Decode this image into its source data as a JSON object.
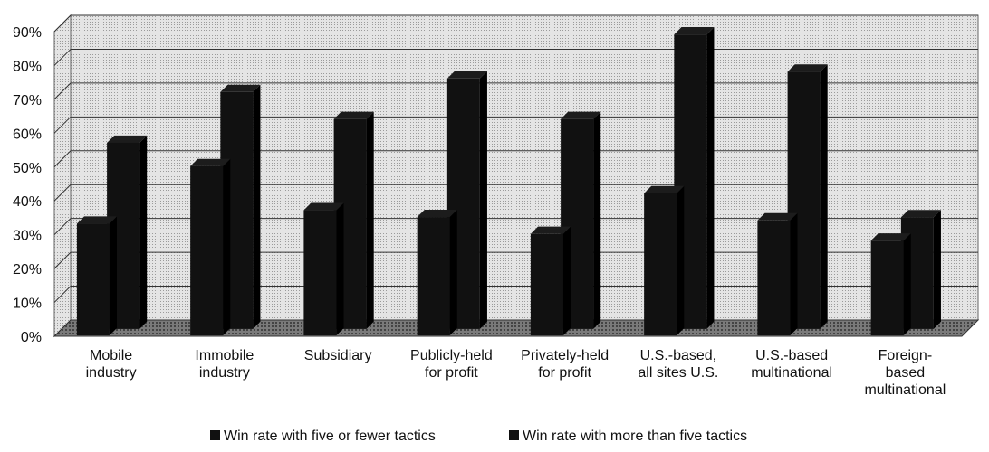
{
  "chart_data": {
    "type": "bar3d",
    "categories": [
      [
        "Mobile",
        "industry"
      ],
      [
        "Immobile",
        "industry"
      ],
      [
        "Subsidiary"
      ],
      [
        "Publicly-held",
        "for profit"
      ],
      [
        "Privately-held",
        "for profit"
      ],
      [
        "U.S.-based,",
        "all sites U.S."
      ],
      [
        "U.S.-based",
        "multinational"
      ],
      [
        "Foreign-",
        "based",
        "multinational"
      ]
    ],
    "series": [
      {
        "name": "Win rate with five or fewer tactics",
        "color": "#111111",
        "values": [
          33,
          50,
          37,
          35,
          30,
          42,
          34,
          28
        ]
      },
      {
        "name": "Win rate with more than five tactics",
        "color": "#111111",
        "values": [
          55,
          70,
          62,
          74,
          62,
          87,
          76,
          33
        ]
      }
    ],
    "ylim": [
      0,
      90
    ],
    "yticks": [
      {
        "value": 0,
        "label": "0%"
      },
      {
        "value": 10,
        "label": "10%"
      },
      {
        "value": 20,
        "label": "20%"
      },
      {
        "value": 30,
        "label": "30%"
      },
      {
        "value": 40,
        "label": "40%"
      },
      {
        "value": 50,
        "label": "50%"
      },
      {
        "value": 60,
        "label": "60%"
      },
      {
        "value": 70,
        "label": "70%"
      },
      {
        "value": 80,
        "label": "80%"
      },
      {
        "value": 90,
        "label": "90%"
      }
    ],
    "grid": true,
    "legend": "bottom"
  }
}
